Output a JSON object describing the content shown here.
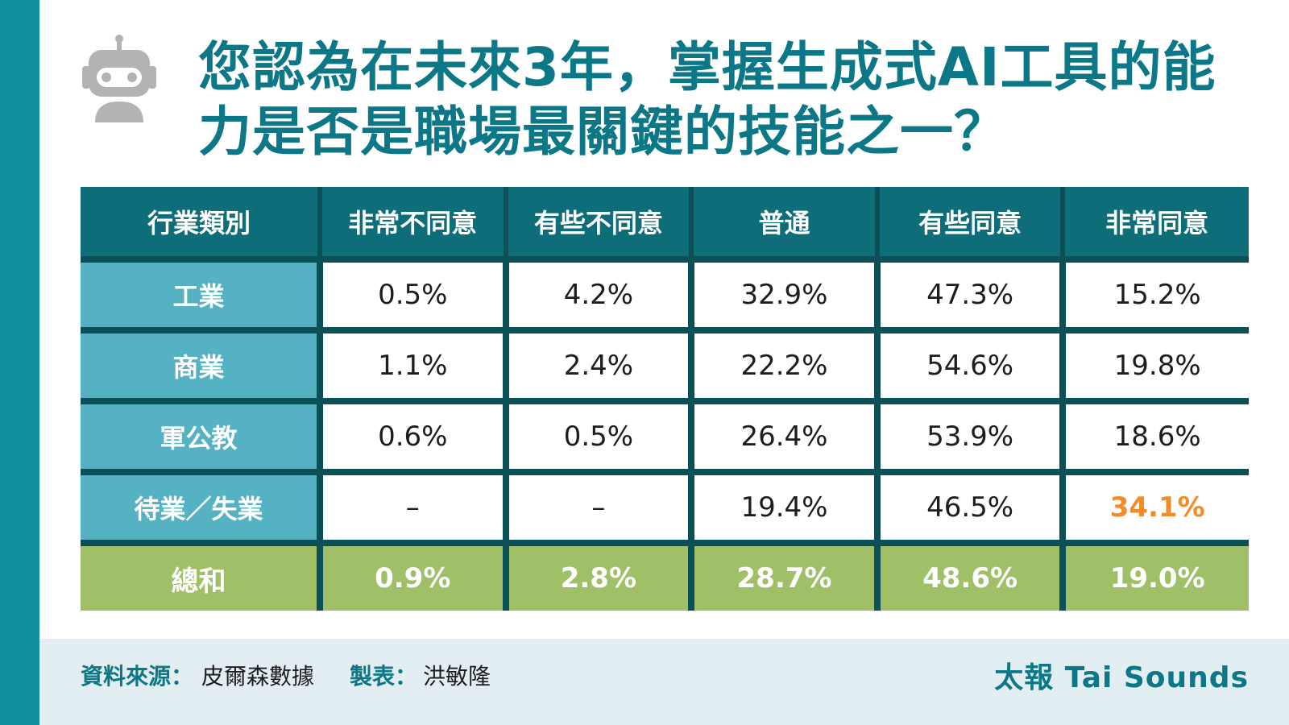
{
  "title": "您認為在未來3年，掌握生成式AI工具的能力是否是職場最關鍵的技能之一？",
  "colors": {
    "accent_bar": "#0f8fa0",
    "title": "#0c7786",
    "header_bg": "#0d6d78",
    "category_bg": "#55b2c3",
    "total_bg": "#9fc067",
    "highlight": "#f28c28",
    "footer_bg": "#e3eef3"
  },
  "icon": "robot-icon",
  "chart_data": {
    "type": "table",
    "title": "您認為在未來3年，掌握生成式AI工具的能力是否是職場最關鍵的技能之一？",
    "columns": [
      "行業類別",
      "非常不同意",
      "有些不同意",
      "普通",
      "有些同意",
      "非常同意"
    ],
    "rows": [
      {
        "category": "工業",
        "values": [
          "0.5%",
          "4.2%",
          "32.9%",
          "47.3%",
          "15.2%"
        ]
      },
      {
        "category": "商業",
        "values": [
          "1.1%",
          "2.4%",
          "22.2%",
          "54.6%",
          "19.8%"
        ]
      },
      {
        "category": "軍公教",
        "values": [
          "0.6%",
          "0.5%",
          "26.4%",
          "53.9%",
          "18.6%"
        ]
      },
      {
        "category": "待業／失業",
        "values": [
          "–",
          "–",
          "19.4%",
          "46.5%",
          "34.1%"
        ]
      }
    ],
    "total": {
      "category": "總和",
      "values": [
        "0.9%",
        "2.8%",
        "28.7%",
        "48.6%",
        "19.0%"
      ]
    },
    "highlighted_cell": {
      "row": "待業／失業",
      "column": "非常同意",
      "value": "34.1%"
    }
  },
  "footer": {
    "source_label": "資料來源：",
    "source_value": "皮爾森數據",
    "maker_label": "製表：",
    "maker_value": "洪敏隆",
    "brand": "太報 Tai Sounds"
  }
}
